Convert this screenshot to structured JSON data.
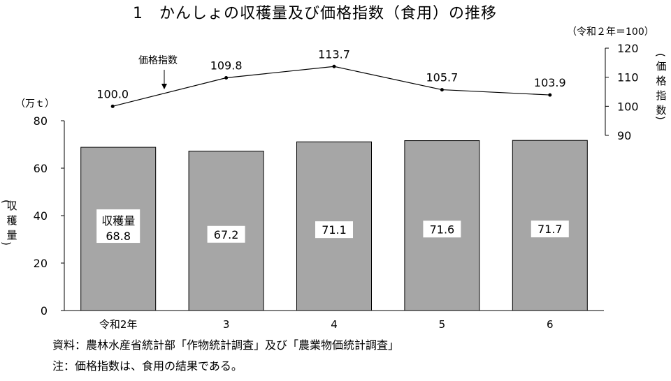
{
  "chart_data": {
    "type": "bar",
    "title": "1　かんしょの収穫量及び価格指数（食用）の推移",
    "categories": [
      "令和2年",
      "3",
      "4",
      "5",
      "6"
    ],
    "series": [
      {
        "name": "収穫量",
        "values": [
          68.8,
          67.2,
          71.1,
          71.6,
          71.7
        ],
        "value_labels": [
          "68.8",
          "67.2",
          "71.1",
          "71.6",
          "71.7"
        ],
        "color": "#a6a6a6"
      },
      {
        "name": "価格指数",
        "type": "line",
        "values": [
          100.0,
          109.8,
          113.7,
          105.7,
          103.9
        ],
        "value_labels": [
          "100.0",
          "109.8",
          "113.7",
          "105.7",
          "103.9"
        ],
        "color": "#000000"
      }
    ],
    "left_axis": {
      "unit": "（万ｔ）",
      "label_chars": [
        "収",
        "穫",
        "量"
      ],
      "ylim": [
        0,
        80
      ],
      "ticks": [
        "0",
        "20",
        "40",
        "60",
        "80"
      ]
    },
    "right_axis": {
      "note": "（令和２年＝100）",
      "label_chars": [
        "価",
        "格",
        "指",
        "数"
      ],
      "ylim": [
        90,
        120
      ],
      "ticks": [
        "90",
        "100",
        "110",
        "120"
      ]
    },
    "annotation": "価格指数",
    "first_bar_series_label": "収穫量",
    "grid": false
  },
  "footer": {
    "source": "資料：農林水産省統計部「作物統計調査」及び「農業物価統計調査」",
    "note": "注：価格指数は、食用の結果である。"
  }
}
